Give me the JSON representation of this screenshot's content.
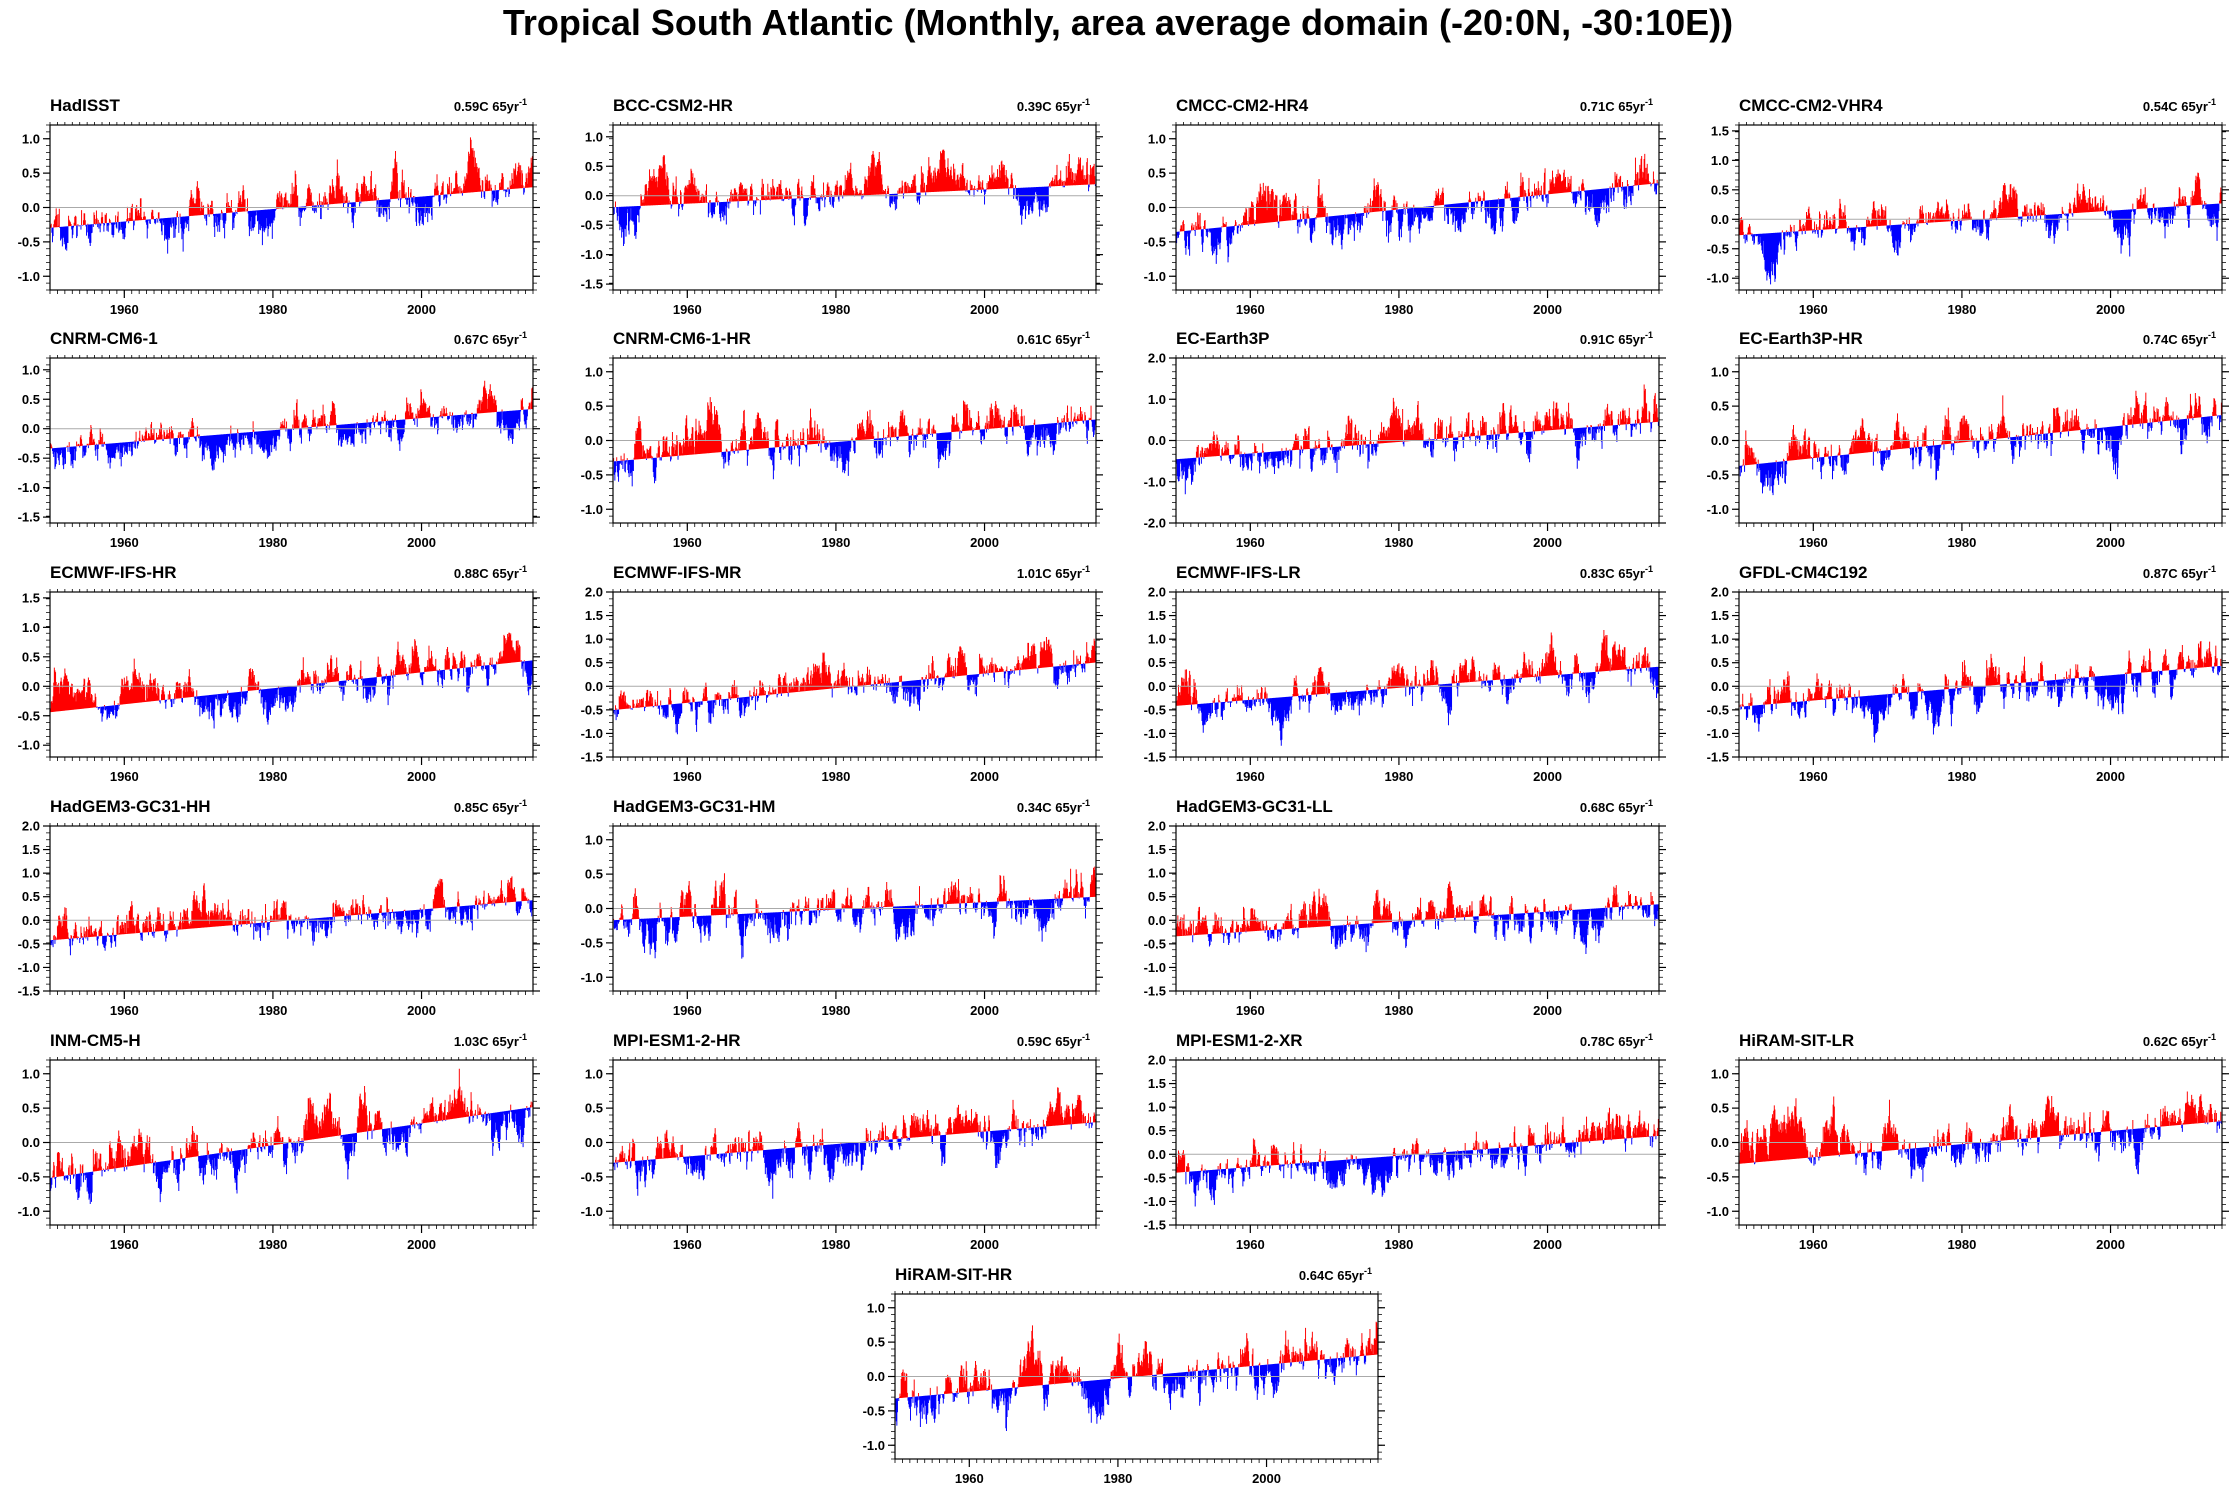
{
  "title": "Tropical South Atlantic (Monthly, area average domain (-20:0N, -30:10E))",
  "colors": {
    "positive": "#ff0000",
    "negative": "#0000ff",
    "zero_line": "#aaaaaa",
    "axis": "#000000"
  },
  "x_ticks": [
    "1960",
    "1980",
    "2000"
  ],
  "chart_data": [
    {
      "type": "bar",
      "name": "HadISST",
      "trend_value": "0.59C",
      "trend_unit": "65yr",
      "trend_exp": "-1",
      "slope": 0.59,
      "ylim": [
        -1.2,
        1.2
      ],
      "yticks": [
        "1.0",
        "0.5",
        "0.0",
        "-0.5",
        "-1.0"
      ],
      "x": [
        1950,
        2015
      ],
      "seed": 11
    },
    {
      "type": "bar",
      "name": "BCC-CSM2-HR",
      "trend_value": "0.39C",
      "trend_unit": "65yr",
      "trend_exp": "-1",
      "slope": 0.39,
      "ylim": [
        -1.6,
        1.2
      ],
      "yticks": [
        "1.0",
        "0.5",
        "0.0",
        "-0.5",
        "-1.0",
        "-1.5"
      ],
      "x": [
        1950,
        2015
      ],
      "seed": 23
    },
    {
      "type": "bar",
      "name": "CMCC-CM2-HR4",
      "trend_value": "0.71C",
      "trend_unit": "65yr",
      "trend_exp": "-1",
      "slope": 0.71,
      "ylim": [
        -1.2,
        1.2
      ],
      "yticks": [
        "1.0",
        "0.5",
        "0.0",
        "-0.5",
        "-1.0"
      ],
      "x": [
        1950,
        2015
      ],
      "seed": 37
    },
    {
      "type": "bar",
      "name": "CMCC-CM2-VHR4",
      "trend_value": "0.54C",
      "trend_unit": "65yr",
      "trend_exp": "-1",
      "slope": 0.54,
      "ylim": [
        -1.2,
        1.6
      ],
      "yticks": [
        "1.5",
        "1.0",
        "0.5",
        "0.0",
        "-0.5",
        "-1.0"
      ],
      "x": [
        1950,
        2015
      ],
      "seed": 41
    },
    {
      "type": "bar",
      "name": "CNRM-CM6-1",
      "trend_value": "0.67C",
      "trend_unit": "65yr",
      "trend_exp": "-1",
      "slope": 0.67,
      "ylim": [
        -1.6,
        1.2
      ],
      "yticks": [
        "1.0",
        "0.5",
        "0.0",
        "-0.5",
        "-1.0",
        "-1.5"
      ],
      "x": [
        1950,
        2015
      ],
      "seed": 53
    },
    {
      "type": "bar",
      "name": "CNRM-CM6-1-HR",
      "trend_value": "0.61C",
      "trend_unit": "65yr",
      "trend_exp": "-1",
      "slope": 0.61,
      "ylim": [
        -1.2,
        1.2
      ],
      "yticks": [
        "1.0",
        "0.5",
        "0.0",
        "-0.5",
        "-1.0"
      ],
      "x": [
        1950,
        2015
      ],
      "seed": 67
    },
    {
      "type": "bar",
      "name": "EC-Earth3P",
      "trend_value": "0.91C",
      "trend_unit": "65yr",
      "trend_exp": "-1",
      "slope": 0.91,
      "ylim": [
        -2.0,
        2.0
      ],
      "yticks": [
        "2.0",
        "1.0",
        "0.0",
        "-1.0",
        "-2.0"
      ],
      "x": [
        1950,
        2015
      ],
      "seed": 71
    },
    {
      "type": "bar",
      "name": "EC-Earth3P-HR",
      "trend_value": "0.74C",
      "trend_unit": "65yr",
      "trend_exp": "-1",
      "slope": 0.74,
      "ylim": [
        -1.2,
        1.2
      ],
      "yticks": [
        "1.0",
        "0.5",
        "0.0",
        "-0.5",
        "-1.0"
      ],
      "x": [
        1950,
        2015
      ],
      "seed": 83
    },
    {
      "type": "bar",
      "name": "ECMWF-IFS-HR",
      "trend_value": "0.88C",
      "trend_unit": "65yr",
      "trend_exp": "-1",
      "slope": 0.88,
      "ylim": [
        -1.2,
        1.6
      ],
      "yticks": [
        "1.5",
        "1.0",
        "0.5",
        "0.0",
        "-0.5",
        "-1.0"
      ],
      "x": [
        1950,
        2015
      ],
      "seed": 97
    },
    {
      "type": "bar",
      "name": "ECMWF-IFS-MR",
      "trend_value": "1.01C",
      "trend_unit": "65yr",
      "trend_exp": "-1",
      "slope": 1.01,
      "ylim": [
        -1.5,
        2.0
      ],
      "yticks": [
        "2.0",
        "1.5",
        "1.0",
        "0.5",
        "0.0",
        "-0.5",
        "-1.0",
        "-1.5"
      ],
      "x": [
        1950,
        2015
      ],
      "seed": 101
    },
    {
      "type": "bar",
      "name": "ECMWF-IFS-LR",
      "trend_value": "0.83C",
      "trend_unit": "65yr",
      "trend_exp": "-1",
      "slope": 0.83,
      "ylim": [
        -1.5,
        2.0
      ],
      "yticks": [
        "2.0",
        "1.5",
        "1.0",
        "0.5",
        "0.0",
        "-0.5",
        "-1.0",
        "-1.5"
      ],
      "x": [
        1950,
        2015
      ],
      "seed": 113
    },
    {
      "type": "bar",
      "name": "GFDL-CM4C192",
      "trend_value": "0.87C",
      "trend_unit": "65yr",
      "trend_exp": "-1",
      "slope": 0.87,
      "ylim": [
        -1.5,
        2.0
      ],
      "yticks": [
        "2.0",
        "1.5",
        "1.0",
        "0.5",
        "0.0",
        "-0.5",
        "-1.0",
        "-1.5"
      ],
      "x": [
        1950,
        2015
      ],
      "seed": 127
    },
    {
      "type": "bar",
      "name": "HadGEM3-GC31-HH",
      "trend_value": "0.85C",
      "trend_unit": "65yr",
      "trend_exp": "-1",
      "slope": 0.85,
      "ylim": [
        -1.5,
        2.0
      ],
      "yticks": [
        "2.0",
        "1.5",
        "1.0",
        "0.5",
        "0.0",
        "-0.5",
        "-1.0",
        "-1.5"
      ],
      "x": [
        1950,
        2015
      ],
      "seed": 131
    },
    {
      "type": "bar",
      "name": "HadGEM3-GC31-HM",
      "trend_value": "0.34C",
      "trend_unit": "65yr",
      "trend_exp": "-1",
      "slope": 0.34,
      "ylim": [
        -1.2,
        1.2
      ],
      "yticks": [
        "1.0",
        "0.5",
        "0.0",
        "-0.5",
        "-1.0"
      ],
      "x": [
        1950,
        2015
      ],
      "seed": 139
    },
    {
      "type": "bar",
      "name": "HadGEM3-GC31-LL",
      "trend_value": "0.68C",
      "trend_unit": "65yr",
      "trend_exp": "-1",
      "slope": 0.68,
      "ylim": [
        -1.5,
        2.0
      ],
      "yticks": [
        "2.0",
        "1.5",
        "1.0",
        "0.5",
        "0.0",
        "-0.5",
        "-1.0",
        "-1.5"
      ],
      "x": [
        1950,
        2015
      ],
      "seed": 149
    },
    {
      "type": "bar",
      "name": "INM-CM5-H",
      "trend_value": "1.03C",
      "trend_unit": "65yr",
      "trend_exp": "-1",
      "slope": 1.03,
      "ylim": [
        -1.2,
        1.2
      ],
      "yticks": [
        "1.0",
        "0.5",
        "0.0",
        "-0.5",
        "-1.0"
      ],
      "x": [
        1950,
        2015
      ],
      "seed": 157
    },
    {
      "type": "bar",
      "name": "MPI-ESM1-2-HR",
      "trend_value": "0.59C",
      "trend_unit": "65yr",
      "trend_exp": "-1",
      "slope": 0.59,
      "ylim": [
        -1.2,
        1.2
      ],
      "yticks": [
        "1.0",
        "0.5",
        "0.0",
        "-0.5",
        "-1.0"
      ],
      "x": [
        1950,
        2015
      ],
      "seed": 163
    },
    {
      "type": "bar",
      "name": "MPI-ESM1-2-XR",
      "trend_value": "0.78C",
      "trend_unit": "65yr",
      "trend_exp": "-1",
      "slope": 0.78,
      "ylim": [
        -1.5,
        2.0
      ],
      "yticks": [
        "2.0",
        "1.5",
        "1.0",
        "0.5",
        "0.0",
        "-0.5",
        "-1.0",
        "-1.5"
      ],
      "x": [
        1950,
        2015
      ],
      "seed": 173
    },
    {
      "type": "bar",
      "name": "HiRAM-SIT-LR",
      "trend_value": "0.62C",
      "trend_unit": "65yr",
      "trend_exp": "-1",
      "slope": 0.62,
      "ylim": [
        -1.2,
        1.2
      ],
      "yticks": [
        "1.0",
        "0.5",
        "0.0",
        "-0.5",
        "-1.0"
      ],
      "x": [
        1950,
        2015
      ],
      "seed": 181
    },
    {
      "type": "bar",
      "name": "HiRAM-SIT-HR",
      "trend_value": "0.64C",
      "trend_unit": "65yr",
      "trend_exp": "-1",
      "slope": 0.64,
      "ylim": [
        -1.2,
        1.2
      ],
      "yticks": [
        "1.0",
        "0.5",
        "0.0",
        "-0.5",
        "-1.0"
      ],
      "x": [
        1950,
        2015
      ],
      "seed": 191
    }
  ]
}
